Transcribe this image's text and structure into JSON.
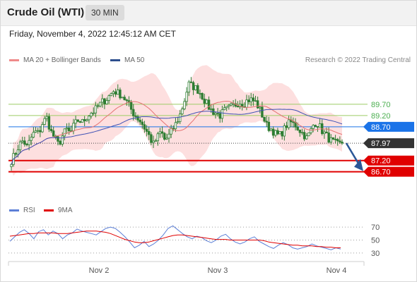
{
  "header": {
    "title": "Crude Oil (WTI)",
    "timeframe": "30 MIN"
  },
  "datetime": "Friday, November 4, 2022 12:45:12 AM CET",
  "legend": {
    "ma20_label": "MA 20 + Bollinger Bands",
    "ma50_label": "MA 50"
  },
  "copyright": "Research © 2022 Trading Central",
  "rsi_legend": {
    "rsi_label": "RSI",
    "ma_label": "9MA"
  },
  "colors": {
    "candle": "#2e7d32",
    "ma20": "#e57373",
    "ma50": "#3f51b5",
    "band": "#fcd4d4",
    "level_green": "#9ccc65",
    "level_blue": "#1a73e8",
    "level_red": "#e00000",
    "price_tag": "#333333",
    "arrow": "#2b5797",
    "rsi": "#5c7fd6",
    "rsi_ma": "#e00000"
  },
  "chart_data": [
    {
      "type": "candlestick",
      "instrument": "Crude Oil (WTI)",
      "timeframe": "30 MIN",
      "x_ticks": [
        "Nov 2",
        "Nov 3",
        "Nov 4"
      ],
      "ylim": [
        85.5,
        91.2
      ],
      "close_path": [
        87.2,
        87.5,
        87.9,
        88.1,
        87.8,
        88.2,
        88.5,
        88.4,
        88.9,
        89.1,
        88.5,
        88.2,
        87.9,
        88.3,
        88.6,
        88.4,
        88.8,
        89.0,
        88.9,
        89.1,
        89.3,
        89.4,
        89.6,
        89.8,
        89.9,
        90.1,
        90.3,
        90.2,
        90.1,
        89.9,
        89.6,
        89.3,
        89.1,
        88.9,
        88.6,
        88.3,
        87.9,
        88.2,
        88.5,
        88.1,
        88.3,
        88.6,
        88.9,
        89.3,
        89.9,
        90.6,
        90.5,
        90.4,
        90.2,
        89.9,
        89.6,
        89.4,
        89.3,
        89.2,
        89.4,
        89.5,
        89.6,
        89.7,
        89.8,
        89.7,
        89.9,
        89.9,
        89.8,
        89.5,
        89.1,
        88.7,
        88.6,
        88.4,
        88.3,
        88.5,
        88.8,
        88.9,
        88.8,
        88.6,
        88.4,
        88.2,
        88.5,
        88.9,
        88.8,
        88.5,
        88.3,
        88.1,
        88.0,
        87.9,
        87.97
      ],
      "levels": [
        {
          "value": 89.7,
          "label": "89.70",
          "role": "resistance"
        },
        {
          "value": 89.2,
          "label": "89.20",
          "role": "resistance"
        },
        {
          "value": 88.7,
          "label": "88.70",
          "role": "pivot"
        },
        {
          "value": 87.97,
          "label": "87.97",
          "role": "last price"
        },
        {
          "value": 87.2,
          "label": "87.20",
          "role": "support"
        },
        {
          "value": 86.7,
          "label": "86.70",
          "role": "support"
        }
      ],
      "series": [
        {
          "name": "MA 20 + Bollinger Bands"
        },
        {
          "name": "MA 50"
        }
      ]
    },
    {
      "type": "line",
      "indicator": "RSI",
      "ylim": [
        20,
        80
      ],
      "y_ticks": [
        70,
        50,
        30
      ],
      "series": [
        {
          "name": "RSI",
          "values": [
            48,
            55,
            62,
            66,
            60,
            52,
            63,
            66,
            58,
            64,
            60,
            52,
            58,
            61,
            67,
            64,
            62,
            60,
            58,
            63,
            68,
            70,
            68,
            62,
            55,
            47,
            38,
            42,
            48,
            40,
            44,
            50,
            58,
            68,
            72,
            66,
            60,
            55,
            52,
            56,
            54,
            49,
            46,
            50,
            56,
            59,
            52,
            47,
            44,
            47,
            52,
            55,
            48,
            44,
            40,
            37,
            42,
            46,
            43,
            38,
            36,
            38,
            40,
            44,
            41,
            39,
            37,
            35,
            38,
            36
          ]
        },
        {
          "name": "9MA",
          "values": [
            56,
            57,
            58,
            59,
            60,
            60,
            61,
            61,
            61,
            61,
            60,
            60,
            60,
            61,
            62,
            63,
            64,
            64,
            64,
            63,
            62,
            60,
            57,
            54,
            51,
            49,
            47,
            46,
            46,
            47,
            49,
            51,
            53,
            55,
            57,
            58,
            58,
            57,
            56,
            55,
            54,
            53,
            52,
            51,
            51,
            51,
            50,
            50,
            50,
            50,
            50,
            50,
            50,
            49,
            47,
            46,
            45,
            44,
            43,
            42,
            42,
            41,
            41,
            41,
            40,
            40,
            39,
            39,
            38,
            38
          ]
        }
      ]
    }
  ]
}
